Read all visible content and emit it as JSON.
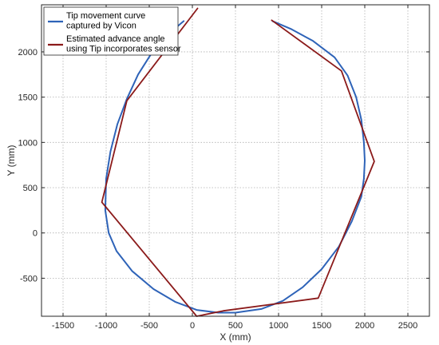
{
  "chart_data": {
    "type": "line",
    "title": "",
    "xlabel": "X (mm)",
    "ylabel": "Y (mm)",
    "xlim": [
      -1750,
      2750
    ],
    "ylim": [
      -920,
      2520
    ],
    "grid": true,
    "legend_position": "top-left",
    "x_ticks": [
      -1500,
      -1000,
      -500,
      0,
      500,
      1000,
      1500,
      2000,
      2500
    ],
    "y_ticks": [
      -500,
      0,
      500,
      1000,
      1500,
      2000
    ],
    "x_tick_labels": [
      "-1500",
      "-1000",
      "-500",
      "0",
      "500",
      "1000",
      "1500",
      "2000",
      "2500"
    ],
    "y_tick_labels": [
      "-500",
      "0",
      "500",
      "1000",
      "1500",
      "2000"
    ],
    "series": [
      {
        "name": "Tip movement curve captured by Vicon",
        "legend_lines": [
          "Tip movement curve",
          "captured by Vicon"
        ],
        "color": "#2e63b8",
        "points": [
          [
            930,
            2340
          ],
          [
            1150,
            2250
          ],
          [
            1400,
            2120
          ],
          [
            1650,
            1940
          ],
          [
            1800,
            1740
          ],
          [
            1900,
            1500
          ],
          [
            1960,
            1250
          ],
          [
            1990,
            1000
          ],
          [
            2000,
            800
          ],
          [
            1990,
            600
          ],
          [
            1960,
            400
          ],
          [
            1850,
            130
          ],
          [
            1700,
            -150
          ],
          [
            1500,
            -400
          ],
          [
            1280,
            -600
          ],
          [
            1050,
            -750
          ],
          [
            800,
            -840
          ],
          [
            500,
            -880
          ],
          [
            300,
            -880
          ],
          [
            50,
            -850
          ],
          [
            -200,
            -760
          ],
          [
            -450,
            -620
          ],
          [
            -700,
            -420
          ],
          [
            -880,
            -200
          ],
          [
            -970,
            0
          ],
          [
            -1010,
            250
          ],
          [
            -1000,
            600
          ],
          [
            -950,
            900
          ],
          [
            -870,
            1200
          ],
          [
            -760,
            1480
          ],
          [
            -630,
            1750
          ],
          [
            -450,
            2020
          ],
          [
            -250,
            2220
          ],
          [
            -100,
            2340
          ]
        ]
      },
      {
        "name": "Estimated advance angle using Tip incorporates sensor",
        "legend_lines": [
          "Estimated advance angle",
          "using Tip incorporates sensor"
        ],
        "color": "#8b1a1a",
        "points": [
          [
            920,
            2350
          ],
          [
            1730,
            1790
          ],
          [
            2110,
            790
          ],
          [
            1460,
            -720
          ],
          [
            360,
            -860
          ],
          [
            50,
            -920
          ],
          [
            -1050,
            340
          ],
          [
            -760,
            1460
          ],
          [
            60,
            2480
          ]
        ]
      }
    ]
  }
}
